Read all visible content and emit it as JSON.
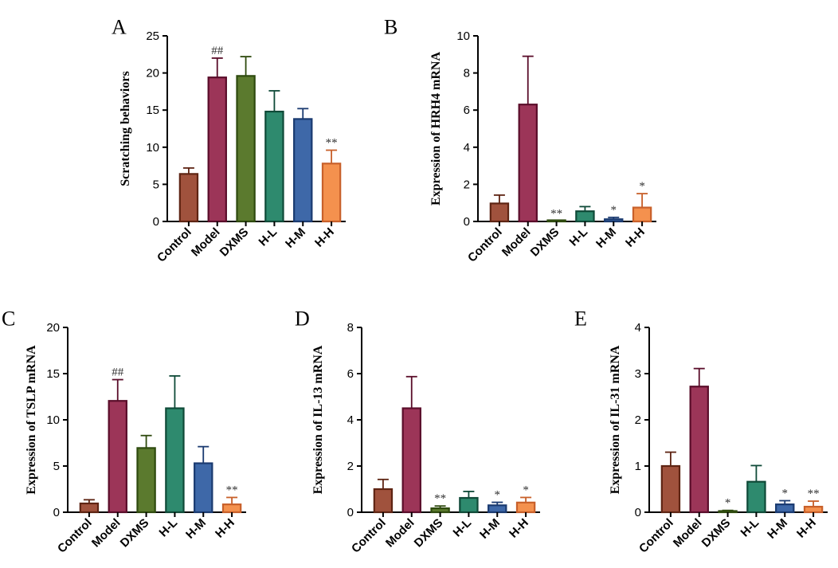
{
  "colors": {
    "Control": {
      "fill": "#a0523d",
      "stroke": "#5e2413"
    },
    "Model": {
      "fill": "#9c3558",
      "stroke": "#5a0d2a"
    },
    "DXMS": {
      "fill": "#5b7a2e",
      "stroke": "#2e4a0e"
    },
    "H-L": {
      "fill": "#2e8a6e",
      "stroke": "#0f4a38"
    },
    "H-M": {
      "fill": "#3e68a8",
      "stroke": "#1a3a70"
    },
    "H-H": {
      "fill": "#f4914e",
      "stroke": "#c8602a"
    }
  },
  "chart_data": [
    {
      "panel": "A",
      "type": "bar",
      "ylabel": "Scratching behaviors",
      "ylim": [
        0,
        25
      ],
      "yticks": [
        0,
        5,
        10,
        15,
        20,
        25
      ],
      "categories": [
        "Control",
        "Model",
        "DXMS",
        "H-L",
        "H-M",
        "H-H"
      ],
      "values": [
        6.4,
        19.4,
        19.6,
        14.8,
        13.8,
        7.8
      ],
      "errors": [
        0.8,
        2.6,
        2.6,
        2.8,
        1.4,
        1.8
      ],
      "annotations": [
        "",
        "##",
        "",
        "",
        "",
        "**"
      ]
    },
    {
      "panel": "B",
      "type": "bar",
      "ylabel": "Expression of HRH4  mRNA",
      "ylim": [
        0,
        10
      ],
      "yticks": [
        0,
        2,
        4,
        6,
        8,
        10
      ],
      "categories": [
        "Control",
        "Model",
        "DXMS",
        "H-L",
        "H-M",
        "H-H"
      ],
      "values": [
        0.97,
        6.3,
        0.02,
        0.55,
        0.12,
        0.75
      ],
      "errors": [
        0.45,
        2.6,
        0.0,
        0.25,
        0.1,
        0.75
      ],
      "annotations": [
        "",
        "",
        "**",
        "",
        "*",
        "*"
      ]
    },
    {
      "panel": "C",
      "type": "bar",
      "ylabel": "Expression of TSLP mRNA",
      "ylim": [
        0,
        20
      ],
      "yticks": [
        0,
        5,
        10,
        15,
        20
      ],
      "categories": [
        "Control",
        "Model",
        "DXMS",
        "H-L",
        "H-M",
        "H-H"
      ],
      "values": [
        0.95,
        12.05,
        6.95,
        11.25,
        5.3,
        0.85
      ],
      "errors": [
        0.4,
        2.3,
        1.35,
        3.5,
        1.8,
        0.75
      ],
      "annotations": [
        "",
        "##",
        "",
        "",
        "",
        "**"
      ]
    },
    {
      "panel": "D",
      "type": "bar",
      "ylabel": "Expression of IL-13  mRNA",
      "ylim": [
        0,
        8
      ],
      "yticks": [
        0,
        2,
        4,
        6,
        8
      ],
      "categories": [
        "Control",
        "Model",
        "DXMS",
        "H-L",
        "H-M",
        "H-H"
      ],
      "values": [
        1.0,
        4.5,
        0.17,
        0.62,
        0.3,
        0.42
      ],
      "errors": [
        0.42,
        1.37,
        0.1,
        0.28,
        0.13,
        0.22
      ],
      "annotations": [
        "",
        "",
        "**",
        "",
        "*",
        "*"
      ]
    },
    {
      "panel": "E",
      "type": "bar",
      "ylabel": "Expression of IL-31  mRNA",
      "ylim": [
        0,
        4
      ],
      "yticks": [
        0,
        1,
        2,
        3,
        4
      ],
      "categories": [
        "Control",
        "Model",
        "DXMS",
        "H-L",
        "H-M",
        "H-H"
      ],
      "values": [
        1.0,
        2.72,
        0.02,
        0.66,
        0.17,
        0.12
      ],
      "errors": [
        0.3,
        0.39,
        0.02,
        0.35,
        0.08,
        0.12
      ],
      "annotations": [
        "",
        "",
        "*",
        "",
        "*",
        "**"
      ]
    }
  ]
}
